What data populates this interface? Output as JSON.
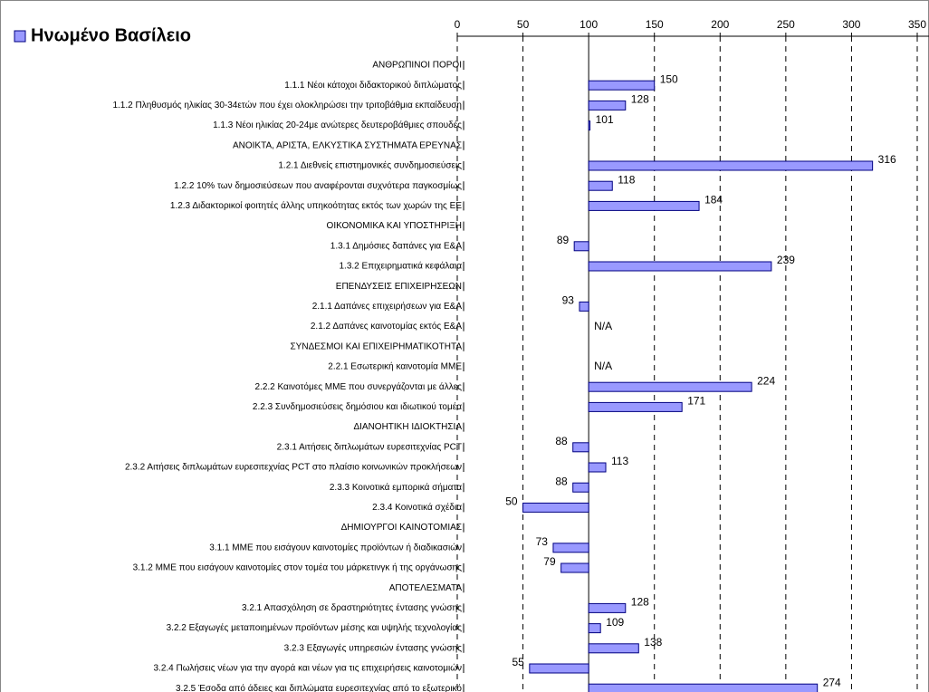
{
  "chart_data": {
    "type": "bar",
    "orientation": "horizontal",
    "baseline": 100,
    "categories": [
      "ΑΝΘΡΩΠΙΝΟΙ ΠΟΡΟΙ",
      "1.1.1 Νέοι κάτοχοι διδακτορικού διπλώματος",
      "1.1.2 Πληθυσμός ηλικίας 30-34ετών που έχει ολοκληρώσει την τριτοβάθμια εκπαίδευση",
      "1.1.3 Νέοι ηλικίας 20-24με ανώτερες δευτεροβάθμιες σπουδές",
      "ΑΝΟΙΚΤΑ, ΑΡΙΣΤΑ, ΕΛΚΥΣΤΙΚΑ ΣΥΣΤΗΜΑΤΑ ΕΡΕΥΝΑΣ",
      "1.2.1 Διεθνείς επιστημονικές συνδημοσιεύσεις",
      "1.2.2 10% των δημοσιεύσεων που αναφέρονται συχνότερα παγκοσμίως",
      "1.2.3 Διδακτορικοί φοιτητές άλλης υπηκοότητας εκτός των χωρών της ΕΕ",
      "ΟΙΚΟΝΟΜΙΚΑ ΚΑΙ ΥΠΟΣΤΗΡΙΞΗ",
      "1.3.1 Δημόσιες δαπάνες για Ε&Α",
      "1.3.2 Επιχειρηματικά κεφάλαια",
      "ΕΠΕΝΔΥΣΕΙΣ ΕΠΙΧΕΙΡΗΣΕΩΝ",
      "2.1.1 Δαπάνες επιχειρήσεων για Ε&Α",
      "2.1.2 Δαπάνες καινοτομίας εκτός Ε&Α",
      "ΣΥΝΔΕΣΜΟΙ ΚΑΙ ΕΠΙΧΕΙΡΗΜΑΤΙΚΟΤΗΤΑ",
      "2.2.1 Εσωτερική καινοτομία ΜΜΕ",
      "2.2.2 Καινοτόμες ΜΜΕ που συνεργάζονται με άλλες",
      "2.2.3 Συνδημοσιεύσεις δημόσιου και ιδιωτικού τομέα",
      "ΔΙΑΝΟΗΤΙΚΗ ΙΔΙΟΚΤΗΣΙΑ",
      "2.3.1 Αιτήσεις διπλωμάτων ευρεσιτεχνίας PCT",
      "2.3.2 Αιτήσεις διπλωμάτων ευρεσιτεχνίας PCT στο πλαίσιο κοινωνικών προκλήσεων",
      "2.3.3 Κοινοτικά εμπορικά σήματα",
      "2.3.4 Κοινοτικά σχέδια",
      "ΔΗΜΙΟΥΡΓΟΙ ΚΑΙΝΟΤΟΜΙΑΣ",
      "3.1.1 ΜΜΕ που εισάγουν καινοτομίες προϊόντων ή διαδικασιών",
      "3.1.2 ΜΜΕ που εισάγουν καινοτομίες στον τομέα του μάρκετινγκ ή της οργάνωσης",
      "ΑΠΟΤΕΛΕΣΜΑΤΑ",
      "3.2.1 Απασχόληση σε δραστηριότητες έντασης γνώσης",
      "3.2.2 Εξαγωγές μεταποιημένων προϊόντων μέσης και υψηλής τεχνολογίας",
      "3.2.3 Εξαγωγές υπηρεσιών έντασης γνώσης",
      "3.2.4 Πωλήσεις νέων για την αγορά και νέων για τις επιχειρήσεις καινοτομιών",
      "3.2.5 Έσοδα από άδειες και διπλώματα ευρεσιτεχνίας από το εξωτερικό"
    ],
    "series": [
      {
        "name": "Ηνωμένο Βασίλειο",
        "color": "#9999ff",
        "values": [
          null,
          150,
          128,
          101,
          null,
          316,
          118,
          184,
          null,
          89,
          239,
          null,
          93,
          null,
          null,
          null,
          224,
          171,
          null,
          88,
          113,
          88,
          50,
          null,
          73,
          79,
          null,
          128,
          109,
          138,
          55,
          274
        ],
        "value_labels": [
          null,
          null,
          null,
          null,
          null,
          null,
          null,
          null,
          null,
          null,
          null,
          null,
          null,
          "N/A",
          null,
          "N/A",
          null,
          null,
          null,
          null,
          null,
          null,
          null,
          null,
          null,
          null,
          null,
          null,
          null,
          null,
          null,
          null
        ]
      }
    ],
    "xlim": [
      0,
      350
    ],
    "xticks": [
      0,
      50,
      100,
      150,
      200,
      250,
      300,
      350
    ],
    "grid": true
  }
}
